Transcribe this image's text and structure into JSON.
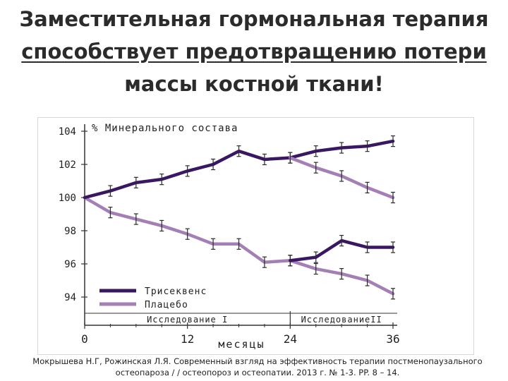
{
  "slide": {
    "title_line1": "Заместительная гормональная терапия",
    "title_line2": "способствует предотвращению потери",
    "title_line3": "массы костной ткани!",
    "caption_line1": "Мокрышева Н.Г, Рожинская Л.Я. Современный взгляд на эффективность терапии постменопаузального",
    "caption_line2": "остеопароза / / остеопороз и остеопатии. 2013 г. № 1-3. PP. 8 – 14."
  },
  "colors": {
    "series1": "#3a1763",
    "series2": "#a47fb6",
    "axis": "#333333",
    "text": "#222222"
  },
  "chart_data": {
    "type": "line",
    "title": "",
    "ylabel": "% Минерального состава",
    "xlabel": "месяцы",
    "xlim": [
      0,
      36
    ],
    "ylim": [
      93.5,
      104.5
    ],
    "x_ticks": [
      0,
      12,
      24,
      36
    ],
    "x_tick_labels": [
      "0",
      "12",
      "24",
      "36"
    ],
    "y_ticks": [
      94,
      96,
      98,
      100,
      102,
      104
    ],
    "y_tick_labels": [
      "94",
      "96",
      "98",
      "100",
      "102",
      "104"
    ],
    "grid": false,
    "legend_position": "bottom-left",
    "x": [
      0,
      3,
      6,
      9,
      12,
      15,
      18,
      21,
      24,
      27,
      30,
      33,
      36
    ],
    "series": [
      {
        "name": "Трисеквенс",
        "values": [
          100.0,
          100.4,
          100.9,
          101.1,
          101.6,
          102.0,
          102.8,
          102.3,
          102.4,
          102.8,
          103.0,
          103.1,
          103.4
        ],
        "error": 0.2
      },
      {
        "name": "Плацебо",
        "values": [
          100.0,
          99.1,
          98.7,
          98.3,
          97.8,
          97.2,
          97.2,
          96.1,
          96.2,
          95.7,
          95.4,
          95.0,
          94.2
        ],
        "error": 0.2
      }
    ],
    "series_after_24": [
      {
        "name": "Трисеквенс",
        "x": [
          24,
          27,
          30,
          33,
          36
        ],
        "values": [
          96.2,
          96.4,
          97.4,
          97.0,
          97.0
        ],
        "error": 0.2
      },
      {
        "name": "Плацебо",
        "x": [
          24,
          27,
          30,
          33,
          36
        ],
        "values": [
          102.4,
          101.8,
          101.3,
          100.6,
          100.0
        ],
        "error": 0.2
      }
    ],
    "phases": [
      {
        "label": "Исследование I",
        "x_range": [
          0,
          24
        ]
      },
      {
        "label": "ИсследованиеII",
        "x_range": [
          24,
          36
        ]
      }
    ]
  }
}
